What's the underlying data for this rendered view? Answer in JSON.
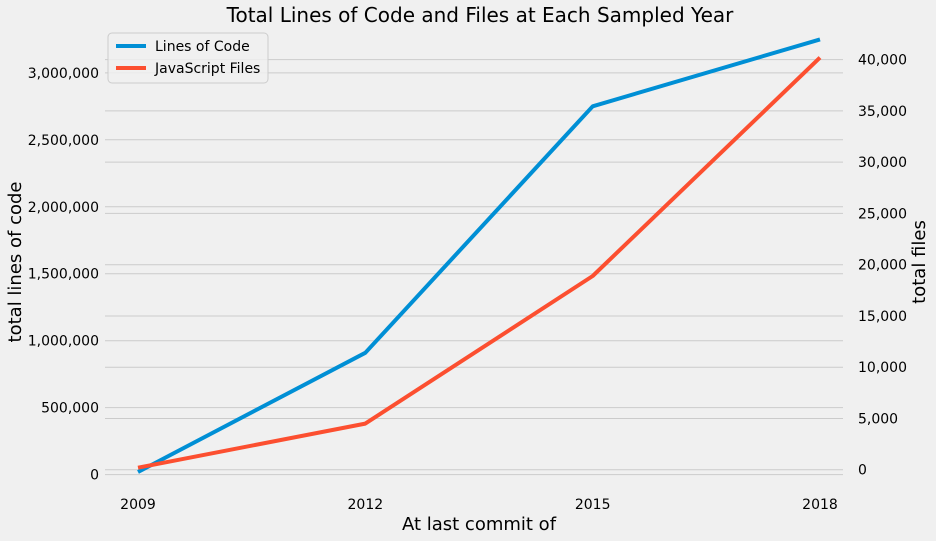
{
  "chart_data": {
    "type": "line",
    "title": "Total Lines of Code and Files at Each Sampled Year",
    "xlabel": "At last commit of",
    "ylabel_left": "total lines of code",
    "ylabel_right": "total files",
    "categories": [
      "2009",
      "2012",
      "2015",
      "2018"
    ],
    "y_left_ticks": [
      0,
      500000,
      1000000,
      1500000,
      2000000,
      2500000,
      3000000
    ],
    "y_left_tick_labels": [
      "0",
      "500,000",
      "1,000,000",
      "1,500,000",
      "2,000,000",
      "2,500,000",
      "3,000,000"
    ],
    "y_left_range": [
      -40000,
      3290000
    ],
    "y_right_ticks": [
      0,
      5000,
      10000,
      15000,
      20000,
      25000,
      30000,
      35000,
      40000
    ],
    "y_right_tick_labels": [
      "0",
      "5,000",
      "10,000",
      "15,000",
      "20,000",
      "25,000",
      "30,000",
      "35,000",
      "40,000"
    ],
    "y_right_range": [
      -1000,
      42500
    ],
    "grid": true,
    "legend_position": "top-left",
    "series": [
      {
        "name": "Lines of Code",
        "axis": "left",
        "color": "#008fd5",
        "values": [
          20000,
          910000,
          2750000,
          3250000
        ]
      },
      {
        "name": "JavaScript Files",
        "axis": "right",
        "color": "#fc4f30",
        "values": [
          200,
          4500,
          18900,
          40200
        ]
      }
    ]
  }
}
